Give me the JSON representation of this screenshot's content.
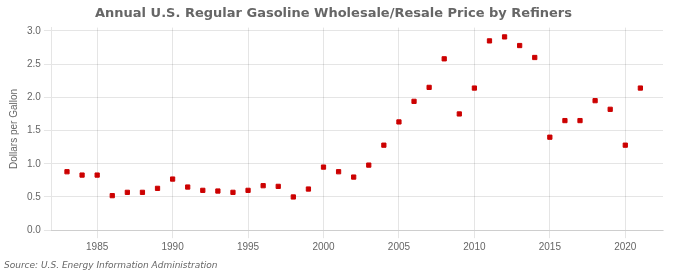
{
  "chart_data": {
    "type": "scatter",
    "title": "Annual U.S. Regular Gasoline Wholesale/Resale Price by Refiners",
    "ylabel": "Dollars per Gallon",
    "annotations": [
      "Source: U.S. Energy Information Administration"
    ],
    "x": [
      1983,
      1984,
      1985,
      1986,
      1987,
      1988,
      1989,
      1990,
      1991,
      1992,
      1993,
      1994,
      1995,
      1996,
      1997,
      1998,
      1999,
      2000,
      2001,
      2002,
      2003,
      2004,
      2005,
      2006,
      2007,
      2008,
      2009,
      2010,
      2011,
      2012,
      2013,
      2014,
      2015,
      2016,
      2017,
      2018,
      2019,
      2020,
      2021
    ],
    "values": [
      0.88,
      0.83,
      0.83,
      0.52,
      0.57,
      0.57,
      0.63,
      0.77,
      0.65,
      0.6,
      0.59,
      0.57,
      0.6,
      0.67,
      0.66,
      0.5,
      0.62,
      0.95,
      0.88,
      0.8,
      0.98,
      1.28,
      1.63,
      1.94,
      2.15,
      2.58,
      1.75,
      2.14,
      2.85,
      2.91,
      2.78,
      2.6,
      1.4,
      1.65,
      1.65,
      1.95,
      1.82,
      1.28,
      2.14
    ],
    "color": "#cc0000",
    "marker": "square",
    "xlim": [
      1982,
      2022.5
    ],
    "ylim": [
      0.0,
      3.05
    ],
    "xticks": [
      1985,
      1990,
      1995,
      2000,
      2005,
      2010,
      2015,
      2020
    ],
    "yticks": [
      {
        "value": 0,
        "label": "0.0"
      },
      0.5,
      {
        "value": 1,
        "label": "1.0"
      },
      1.5,
      {
        "value": 2,
        "label": "2.0"
      },
      2.5,
      {
        "value": 3,
        "label": "3.0"
      }
    ],
    "grid": true
  }
}
